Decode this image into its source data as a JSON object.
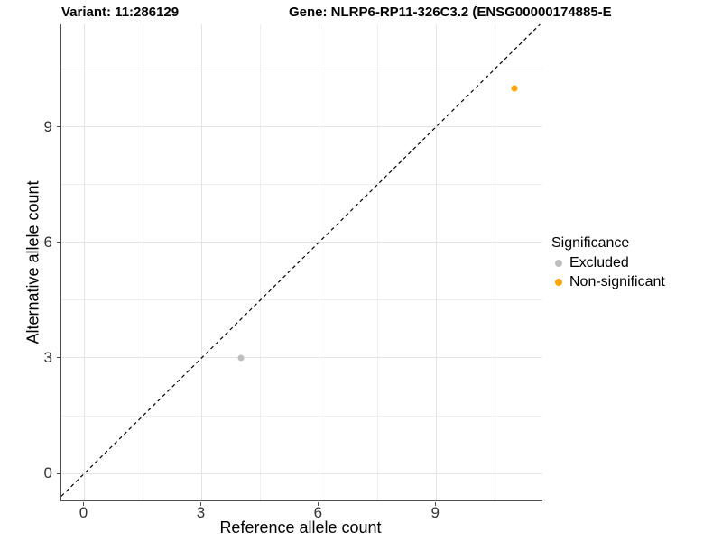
{
  "titles": {
    "variant": "Variant: 11:286129",
    "gene": "Gene: NLRP6-RP11-326C3.2 (ENSG00000174885-E"
  },
  "chart_data": {
    "type": "scatter",
    "xlabel": "Reference allele count",
    "ylabel": "Alternative allele count",
    "xlim": [
      -0.59,
      11.72
    ],
    "ylim": [
      -0.7,
      11.66
    ],
    "x_major_ticks": [
      0,
      3,
      6,
      9
    ],
    "y_major_ticks": [
      0,
      3,
      6,
      9
    ],
    "x_minor_ticks": [
      1.5,
      4.5,
      7.5,
      10.5
    ],
    "y_minor_ticks": [
      1.5,
      4.5,
      7.5,
      10.5
    ],
    "grid": true,
    "identity_line": {
      "style": "dashed",
      "color": "#000000",
      "from": -0.59,
      "to": 11.66
    },
    "series": [
      {
        "name": "Excluded",
        "color": "#BEBEBE",
        "points": [
          {
            "x": 4,
            "y": 3
          }
        ]
      },
      {
        "name": "Non-significant",
        "color": "#FFA500",
        "points": [
          {
            "x": 11,
            "y": 10
          }
        ]
      }
    ],
    "legend": {
      "title": "Significance",
      "position": "right"
    }
  },
  "colors": {
    "excluded": "#BEBEBE",
    "non_significant": "#FFA500",
    "axis_line": "#4D4D4D",
    "grid_major": "#E4E4E4",
    "grid_minor": "#EFEFEF",
    "identity_line": "#000000"
  }
}
